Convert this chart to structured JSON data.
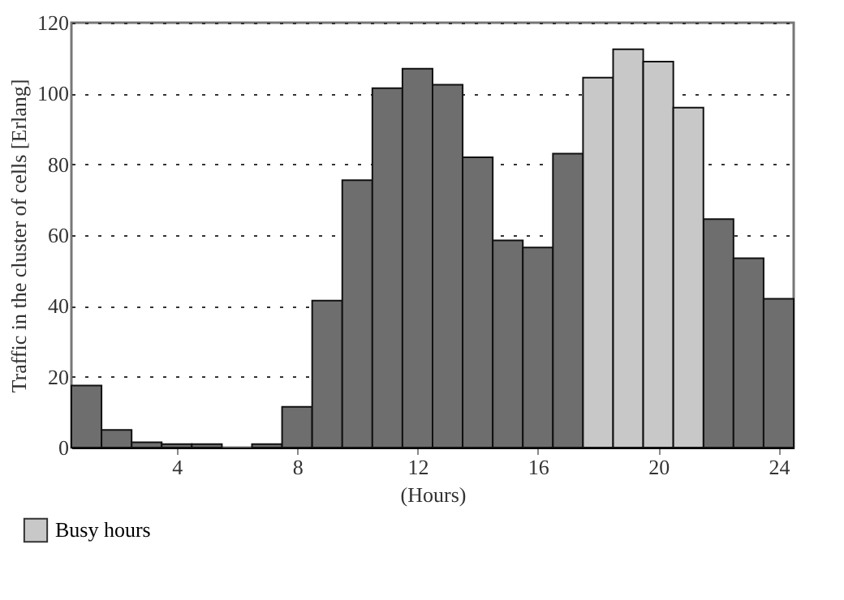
{
  "chart_data": {
    "type": "bar",
    "xlabel": "(Hours)",
    "ylabel": "Traffic in the cluster of cells [Erlang]",
    "x": [
      1,
      2,
      3,
      4,
      5,
      6,
      7,
      8,
      9,
      10,
      11,
      12,
      13,
      14,
      15,
      16,
      17,
      18,
      19,
      20,
      21,
      22,
      23,
      24
    ],
    "series": [
      {
        "color": "#6e6e6e",
        "values": [
          17.5,
          5,
          1.5,
          1,
          1,
          null,
          1,
          11.5,
          41.5,
          75.5,
          101.5,
          107,
          102.5,
          82,
          58.5,
          56.5,
          83,
          null,
          null,
          null,
          null,
          64.5,
          53.5,
          42
        ]
      },
      {
        "name": "Busy hours",
        "color": "#c8c8c8",
        "values": [
          null,
          null,
          null,
          null,
          null,
          null,
          null,
          null,
          null,
          null,
          null,
          null,
          null,
          null,
          null,
          null,
          null,
          104.5,
          112.5,
          109,
          96,
          null,
          null,
          null
        ]
      }
    ],
    "xlim": [
      0.5,
      24.5
    ],
    "xticks": [
      4,
      8,
      12,
      16,
      20,
      24
    ],
    "ylim": [
      0,
      120
    ],
    "yticks": [
      0,
      20,
      40,
      60,
      80,
      100,
      120
    ],
    "grid": "y",
    "legend": "bottom"
  }
}
